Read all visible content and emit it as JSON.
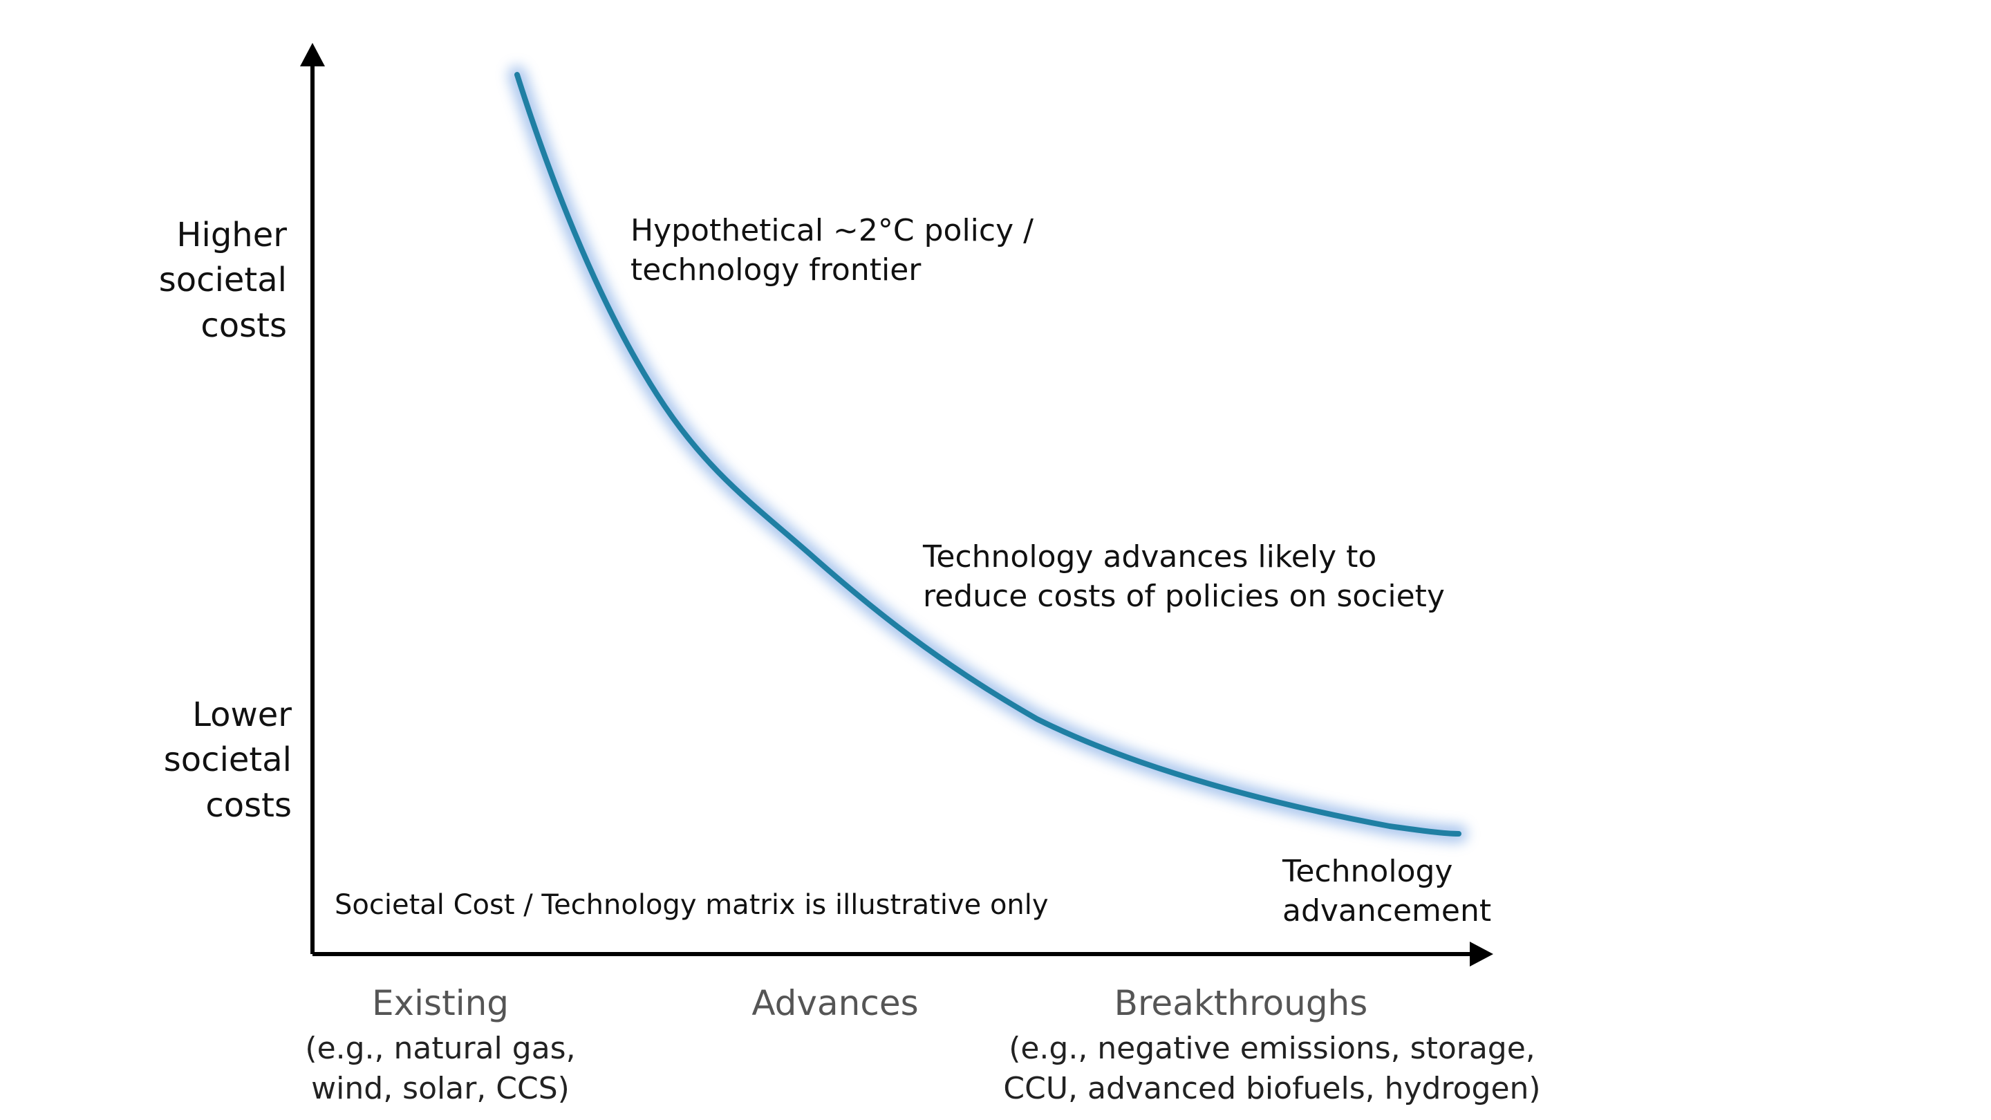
{
  "axis_labels": {
    "y_high": [
      "Higher",
      "societal",
      "costs"
    ],
    "y_low": [
      "Lower",
      "societal",
      "costs"
    ]
  },
  "annotations": {
    "frontier": [
      "Hypothetical ~2°C policy /",
      "technology frontier"
    ],
    "advances": [
      "Technology advances likely to",
      "reduce costs of policies on society"
    ],
    "tech_advancement": [
      "Technology",
      "advancement"
    ],
    "disclaimer": "Societal Cost / Technology matrix is illustrative only"
  },
  "categories": [
    {
      "name": "Existing",
      "examples": [
        "(e.g., natural gas,",
        "wind, solar, CCS)"
      ]
    },
    {
      "name": "Advances",
      "examples": []
    },
    {
      "name": "Breakthroughs",
      "examples": [
        "(e.g., negative emissions, storage,",
        "CCU, advanced biofuels, hydrogen)"
      ]
    }
  ],
  "colors": {
    "curve": "#1f7fa3",
    "curve_glow": "#8fb4e8",
    "axis": "#000000"
  }
}
